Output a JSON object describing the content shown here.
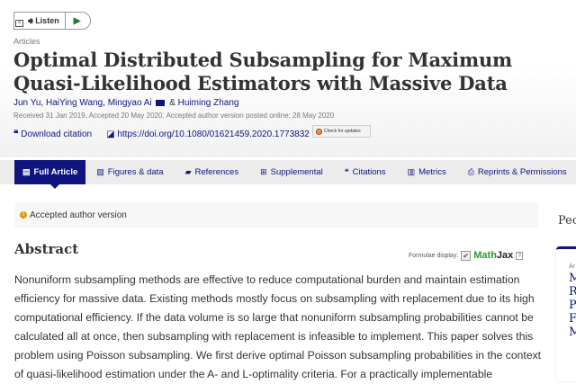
{
  "listen": {
    "label": "Listen",
    "menu_icon": "menu-icon",
    "speaker_icon": "speaker-icon",
    "play_icon": "play-icon"
  },
  "article": {
    "section": "Articles",
    "title": "Optimal Distributed Subsampling for Maximum Quasi-Likelihood Estimators with Massive Data",
    "authors": [
      "Jun Yu,",
      "HaiYing Wang,",
      "Mingyao Ai",
      "Huiming Zhang"
    ],
    "ampersand": "&",
    "dates": "Received 31 Jan 2019, Accepted 20 May 2020, Accepted author version posted online: 28 May 2020",
    "download_citation": "Download citation",
    "doi": "https://doi.org/10.1080/01621459.2020.1773832",
    "check_updates": "Check for updates"
  },
  "tabs": [
    {
      "label": "Full Article",
      "icon": "file-icon"
    },
    {
      "label": "Figures & data",
      "icon": "image-icon"
    },
    {
      "label": "References",
      "icon": "book-icon"
    },
    {
      "label": "Supplemental",
      "icon": "plus-icon"
    },
    {
      "label": "Citations",
      "icon": "quote-icon"
    },
    {
      "label": "Metrics",
      "icon": "bar-chart-icon"
    },
    {
      "label": "Reprints & Permissions",
      "icon": "print-icon"
    }
  ],
  "notice": "Accepted author version",
  "abstract": {
    "heading": "Abstract",
    "formulae_label": "Formulae display:",
    "mathjax_a": "Math",
    "mathjax_b": "Jax",
    "help": "?",
    "text": "Nonuniform subsampling methods are effective to reduce computational burden and maintain estimation efficiency for massive data. Existing methods mostly focus on subsampling with replacement due to its high computational efficiency. If the data volume is so large that nonuniform subsampling probabilities cannot be calculated all at once, then subsampling with replacement is infeasible to implement. This paper solves this problem using Poisson subsampling. We first derive optimal Poisson subsampling probabilities in the context of quasi-likelihood estimation under the A- and L-optimality criteria. For a practically implementable"
  },
  "sidebar": {
    "heading": "Pec",
    "small": "Ar",
    "items": [
      "M",
      "R",
      "P",
      "F",
      "M"
    ]
  },
  "colors": {
    "brand": "#10147e",
    "warning": "#e8950f",
    "mathjax": "#2a9a2a"
  }
}
